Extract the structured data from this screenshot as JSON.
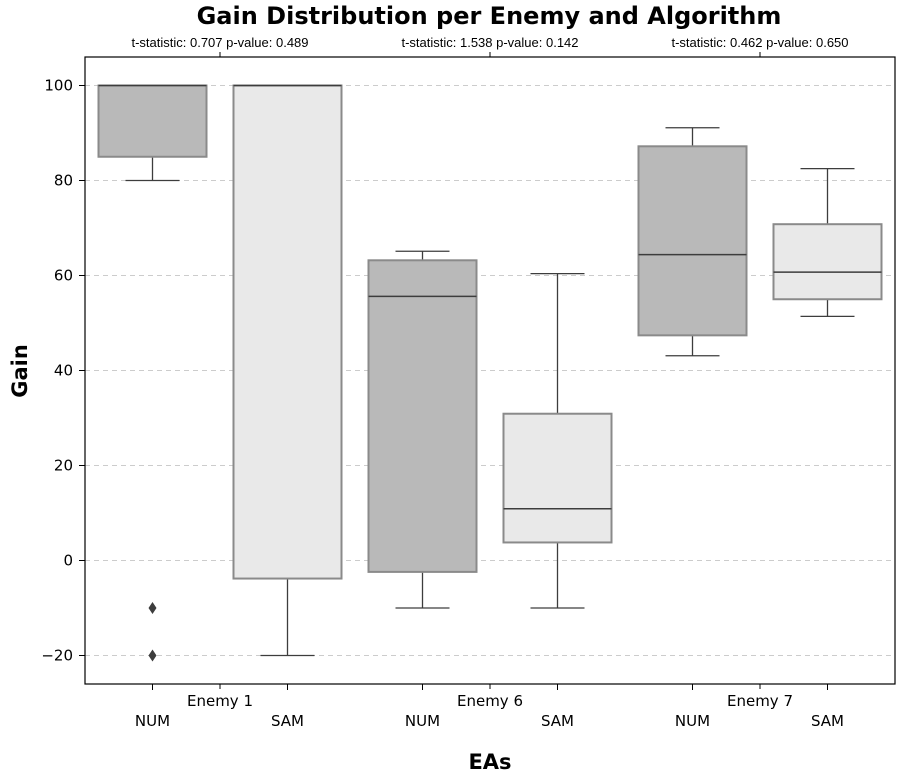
{
  "chart_data": {
    "type": "box",
    "title": "Gain Distribution per Enemy and Algorithm",
    "xlabel": "EAs",
    "ylabel": "Gain",
    "ylim": [
      -26,
      106
    ],
    "yticks": [
      -20,
      0,
      20,
      40,
      60,
      80,
      100
    ],
    "ytick_labels": [
      "−20",
      "0",
      "20",
      "40",
      "60",
      "80",
      "100"
    ],
    "grid": "horizontal-dashed",
    "colors": {
      "NUM": "#b9b9b9",
      "SAM": "#e9e9e9",
      "box_edge": "#8a8a8a",
      "whisker": "#3d3d3d"
    },
    "groups": [
      {
        "label": "Enemy 1",
        "stat": "t-statistic: 0.707 p-value: 0.489",
        "boxes": [
          {
            "label": "NUM",
            "whisker_low": 80,
            "q1": 85,
            "median": 100,
            "q3": 100,
            "whisker_high": 100,
            "outliers": [
              -10,
              -20
            ]
          },
          {
            "label": "SAM",
            "whisker_low": -20,
            "q1": -3.8,
            "median": 100,
            "q3": 100,
            "whisker_high": 100,
            "outliers": []
          }
        ]
      },
      {
        "label": "Enemy 6",
        "stat": "t-statistic: 1.538 p-value: 0.142",
        "boxes": [
          {
            "label": "NUM",
            "whisker_low": -10,
            "q1": -2.4,
            "median": 55.6,
            "q3": 63.2,
            "whisker_high": 65.1,
            "outliers": []
          },
          {
            "label": "SAM",
            "whisker_low": -10,
            "q1": 3.8,
            "median": 10.9,
            "q3": 30.9,
            "whisker_high": 60.4,
            "outliers": []
          }
        ]
      },
      {
        "label": "Enemy 7",
        "stat": "t-statistic: 0.462 p-value: 0.650",
        "boxes": [
          {
            "label": "NUM",
            "whisker_low": 43.1,
            "q1": 47.4,
            "median": 64.4,
            "q3": 87.2,
            "whisker_high": 91.1,
            "outliers": []
          },
          {
            "label": "SAM",
            "whisker_low": 51.4,
            "q1": 55,
            "median": 60.7,
            "q3": 70.8,
            "whisker_high": 82.5,
            "outliers": []
          }
        ]
      }
    ]
  }
}
